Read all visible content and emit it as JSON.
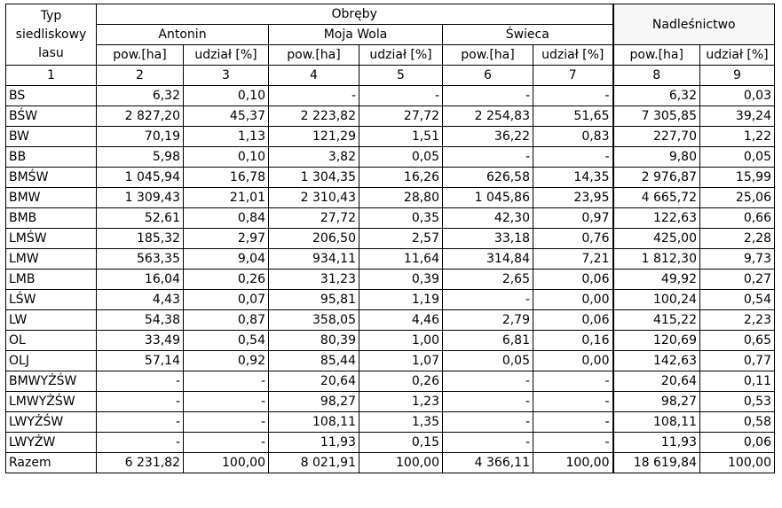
{
  "header": {
    "typ_line1": "Typ",
    "typ_line2": "siedliskowy",
    "typ_line3": "lasu",
    "obreby": "Obręby",
    "nadlesnictwo": "Nadleśnictwo",
    "antonin": "Antonin",
    "moja_wola": "Moja Wola",
    "swieca": "Świeca",
    "pow": "pow.[ha]",
    "udzial": "udział [%]",
    "col_numbers": [
      "1",
      "2",
      "3",
      "4",
      "5",
      "6",
      "7",
      "8",
      "9"
    ]
  },
  "rows": [
    {
      "type": "BS",
      "v": [
        "6,32",
        "0,10",
        "-",
        "-",
        "-",
        "-",
        "6,32",
        "0,03"
      ]
    },
    {
      "type": "BŚW",
      "v": [
        "2 827,20",
        "45,37",
        "2 223,82",
        "27,72",
        "2 254,83",
        "51,65",
        "7 305,85",
        "39,24"
      ]
    },
    {
      "type": "BW",
      "v": [
        "70,19",
        "1,13",
        "121,29",
        "1,51",
        "36,22",
        "0,83",
        "227,70",
        "1,22"
      ]
    },
    {
      "type": "BB",
      "v": [
        "5,98",
        "0,10",
        "3,82",
        "0,05",
        "-",
        "-",
        "9,80",
        "0,05"
      ]
    },
    {
      "type": "BMŚW",
      "v": [
        "1 045,94",
        "16,78",
        "1 304,35",
        "16,26",
        "626,58",
        "14,35",
        "2 976,87",
        "15,99"
      ]
    },
    {
      "type": "BMW",
      "v": [
        "1 309,43",
        "21,01",
        "2 310,43",
        "28,80",
        "1 045,86",
        "23,95",
        "4 665,72",
        "25,06"
      ]
    },
    {
      "type": "BMB",
      "v": [
        "52,61",
        "0,84",
        "27,72",
        "0,35",
        "42,30",
        "0,97",
        "122,63",
        "0,66"
      ]
    },
    {
      "type": "LMŚW",
      "v": [
        "185,32",
        "2,97",
        "206,50",
        "2,57",
        "33,18",
        "0,76",
        "425,00",
        "2,28"
      ]
    },
    {
      "type": "LMW",
      "v": [
        "563,35",
        "9,04",
        "934,11",
        "11,64",
        "314,84",
        "7,21",
        "1 812,30",
        "9,73"
      ]
    },
    {
      "type": "LMB",
      "v": [
        "16,04",
        "0,26",
        "31,23",
        "0,39",
        "2,65",
        "0,06",
        "49,92",
        "0,27"
      ]
    },
    {
      "type": "LŚW",
      "v": [
        "4,43",
        "0,07",
        "95,81",
        "1,19",
        "-",
        "0,00",
        "100,24",
        "0,54"
      ]
    },
    {
      "type": "LW",
      "v": [
        "54,38",
        "0,87",
        "358,05",
        "4,46",
        "2,79",
        "0,06",
        "415,22",
        "2,23"
      ]
    },
    {
      "type": "OL",
      "v": [
        "33,49",
        "0,54",
        "80,39",
        "1,00",
        "6,81",
        "0,16",
        "120,69",
        "0,65"
      ]
    },
    {
      "type": "OLJ",
      "v": [
        "57,14",
        "0,92",
        "85,44",
        "1,07",
        "0,05",
        "0,00",
        "142,63",
        "0,77"
      ]
    },
    {
      "type": "BMWYŻŚW",
      "v": [
        "-",
        "-",
        "20,64",
        "0,26",
        "-",
        "-",
        "20,64",
        "0,11"
      ]
    },
    {
      "type": "LMWYŻŚW",
      "v": [
        "-",
        "-",
        "98,27",
        "1,23",
        "-",
        "-",
        "98,27",
        "0,53"
      ]
    },
    {
      "type": "LWYŻŚW",
      "v": [
        "-",
        "-",
        "108,11",
        "1,35",
        "-",
        "-",
        "108,11",
        "0,58"
      ]
    },
    {
      "type": "LWYŻW",
      "v": [
        "-",
        "-",
        "11,93",
        "0,15",
        "-",
        "-",
        "11,93",
        "0,06"
      ]
    },
    {
      "type": "Razem",
      "v": [
        "6 231,82",
        "100,00",
        "8 021,91",
        "100,00",
        "4 366,11",
        "100,00",
        "18 619,84",
        "100,00"
      ]
    }
  ]
}
